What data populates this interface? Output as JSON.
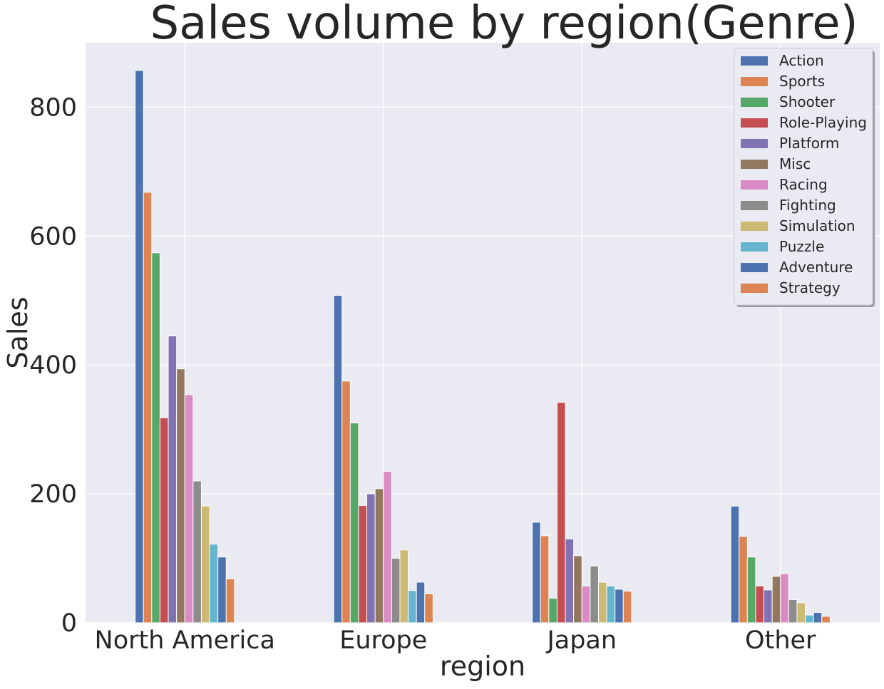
{
  "chart_data": {
    "type": "bar",
    "title": "Sales volume by region(Genre)",
    "xlabel": "region",
    "ylabel": "Sales",
    "categories": [
      "North America",
      "Europe",
      "Japan",
      "Other"
    ],
    "ylim": [
      0,
      900
    ],
    "yticks": [
      "0",
      "200",
      "400",
      "600",
      "800"
    ],
    "grid": true,
    "legend_position": "top-right",
    "series": [
      {
        "name": "Action",
        "color": "#4c72b0",
        "values": [
          857,
          508,
          156,
          181
        ]
      },
      {
        "name": "Sports",
        "color": "#dd8452",
        "values": [
          668,
          375,
          135,
          134
        ]
      },
      {
        "name": "Shooter",
        "color": "#55a868",
        "values": [
          574,
          310,
          38,
          102
        ]
      },
      {
        "name": "Role-Playing",
        "color": "#c44e52",
        "values": [
          318,
          182,
          342,
          57
        ]
      },
      {
        "name": "Platform",
        "color": "#8172b3",
        "values": [
          445,
          200,
          130,
          51
        ]
      },
      {
        "name": "Misc",
        "color": "#937860",
        "values": [
          394,
          208,
          104,
          72
        ]
      },
      {
        "name": "Racing",
        "color": "#da8bc3",
        "values": [
          354,
          235,
          57,
          76
        ]
      },
      {
        "name": "Fighting",
        "color": "#8c8c8c",
        "values": [
          220,
          100,
          88,
          36
        ]
      },
      {
        "name": "Simulation",
        "color": "#ccb974",
        "values": [
          181,
          113,
          63,
          31
        ]
      },
      {
        "name": "Puzzle",
        "color": "#64b5cd",
        "values": [
          122,
          50,
          57,
          12
        ]
      },
      {
        "name": "Adventure",
        "color": "#4c72b0",
        "values": [
          102,
          63,
          52,
          16
        ]
      },
      {
        "name": "Strategy",
        "color": "#dd8452",
        "values": [
          68,
          45,
          49,
          10
        ]
      }
    ]
  }
}
